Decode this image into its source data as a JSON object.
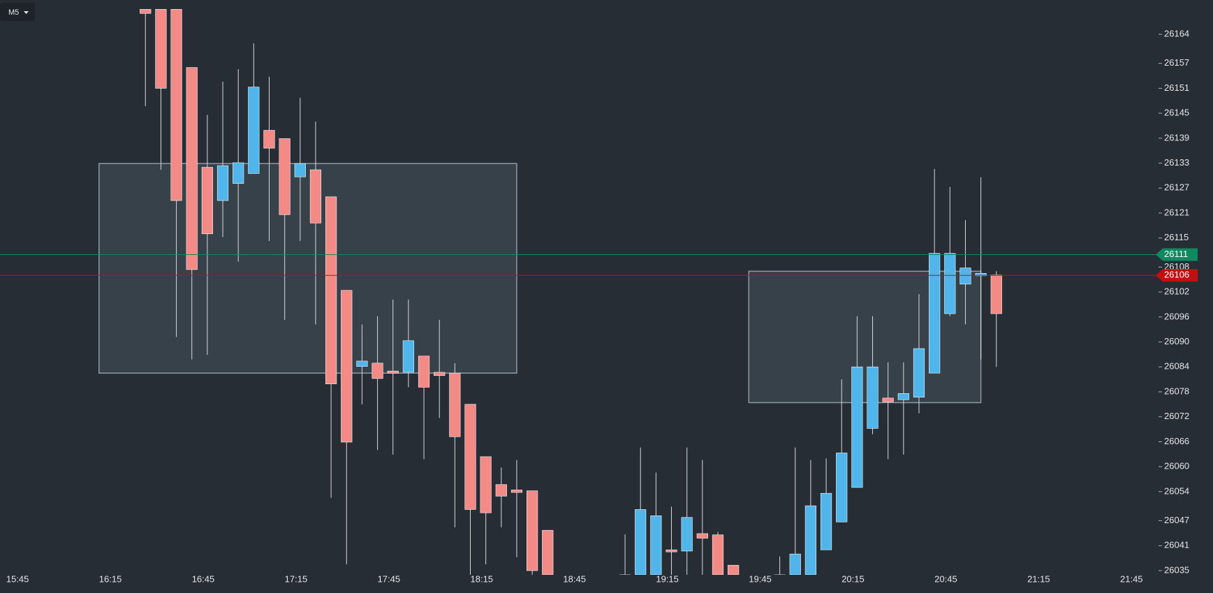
{
  "toolbar": {
    "timeframe": "M5"
  },
  "chart_data": {
    "type": "candlestick",
    "x": [
      "16:30",
      "16:35",
      "16:40",
      "16:45",
      "16:50",
      "16:55",
      "17:00",
      "17:05",
      "17:10",
      "17:15",
      "17:20",
      "17:25",
      "17:30",
      "17:35",
      "17:40",
      "17:45",
      "17:50",
      "17:55",
      "18:00",
      "18:05",
      "18:10",
      "18:15",
      "18:20",
      "18:25",
      "18:30",
      "18:35",
      "18:40",
      "19:05",
      "19:10",
      "19:15",
      "19:20",
      "19:25",
      "19:30",
      "19:35",
      "19:40",
      "19:55",
      "20:00",
      "20:05",
      "20:10",
      "20:15",
      "20:20",
      "20:25",
      "20:30",
      "20:35",
      "20:40",
      "20:45",
      "20:50",
      "20:55",
      "21:00",
      "21:05"
    ],
    "open": [
      26170,
      26170,
      26170,
      26156,
      26132,
      26124,
      26128.1,
      26130.5,
      26140.9,
      26138.9,
      26129.7,
      26131.4,
      26124.9,
      26102.4,
      26084.1,
      26084.9,
      26083,
      26082.7,
      26086.6,
      26082.7,
      26082.5,
      26075,
      26062.4,
      26055.7,
      26054.4,
      26054.2,
      26044.7,
      26034,
      26034,
      26034,
      26040,
      26039.7,
      26043.9,
      26043.6,
      26036.3,
      26034,
      26034,
      26034,
      26040,
      26046.7,
      26055,
      26069.2,
      26076.5,
      26076.1,
      26076.7,
      26082.5,
      26096.8,
      26103.9,
      26105.9,
      26106.1
    ],
    "high": [
      26170,
      26170,
      26170,
      26156,
      26144.6,
      26152.6,
      26155.6,
      26161.8,
      26153.8,
      26138.9,
      26148.7,
      26143,
      26124.9,
      26102.4,
      26094.2,
      26096.2,
      26100.2,
      26100.2,
      26086.6,
      26095.3,
      26084.9,
      26075,
      26062.4,
      26059.8,
      26061.6,
      26054.2,
      26044.7,
      26043.7,
      26064.6,
      26058.6,
      26050.4,
      26064.6,
      26061.6,
      26044.3,
      26036.3,
      26038.4,
      26064.6,
      26061.6,
      26062,
      26081,
      26096.2,
      26096.2,
      26085.1,
      26085.1,
      26101.5,
      26131.6,
      26127.3,
      26119.3,
      26129.6,
      26107
    ],
    "low": [
      26146.7,
      26131.4,
      26091.2,
      26085.8,
      26086.9,
      26115.2,
      26109.3,
      26130.5,
      26114.3,
      26095.3,
      26114.3,
      26094.2,
      26052.5,
      26036.5,
      26075,
      26064,
      26062.9,
      26079.1,
      26061.8,
      26071.7,
      26045.4,
      26034,
      26036.5,
      26045.4,
      26038.2,
      26034,
      26034,
      26034,
      26034,
      26034,
      26034,
      26034,
      26034,
      26034,
      26034,
      26034,
      26034,
      26034,
      26040,
      26046.7,
      26055,
      26067.8,
      26061.8,
      26062.9,
      26072.8,
      26082.5,
      26096.2,
      26094.2,
      26085.8,
      26084
    ],
    "close": [
      26169,
      26151,
      26124,
      26107.4,
      26116,
      26132.4,
      26133.1,
      26151.3,
      26136.6,
      26120.6,
      26132.9,
      26118.6,
      26079.9,
      26065.9,
      26085.4,
      26081.2,
      26082.5,
      26090.3,
      26079.1,
      26081.9,
      26067.2,
      26049.7,
      26048.9,
      26052.9,
      26053.8,
      26035,
      26034,
      26034,
      26049.7,
      26048.2,
      26039.5,
      26047.8,
      26042.8,
      26034,
      26034,
      26034,
      26039,
      26050.6,
      26053.6,
      26063.3,
      26084,
      26084,
      26075.6,
      26077.6,
      26088.4,
      26111.3,
      26111.3,
      26107.8,
      26106.5,
      26096.8
    ],
    "up_color": "#4fb5ea",
    "down_color": "#f38a86",
    "xlim": [
      "15:45",
      "21:45"
    ],
    "xticks": [
      "15:45",
      "16:15",
      "16:45",
      "17:15",
      "17:45",
      "18:15",
      "18:45",
      "19:15",
      "19:45",
      "20:15",
      "20:45",
      "21:15",
      "21:45"
    ],
    "ylim": [
      26034,
      26170
    ],
    "yticks": [
      26035,
      26041,
      26047,
      26054,
      26060,
      26066,
      26072,
      26078,
      26084,
      26090,
      26096,
      26102,
      26108,
      26115,
      26121,
      26127,
      26133,
      26139,
      26145,
      26151,
      26157,
      26164
    ],
    "zones": [
      {
        "x": [
          "16:15",
          "18:30"
        ],
        "y": [
          26082.5,
          26132.9
        ]
      },
      {
        "x": [
          "19:45",
          "21:00"
        ],
        "y": [
          26075.4,
          26107
        ]
      }
    ],
    "price_lines": [
      {
        "value": 26111,
        "color": "#0d8a60"
      },
      {
        "value": 26106,
        "color": "#c30f12"
      }
    ]
  }
}
